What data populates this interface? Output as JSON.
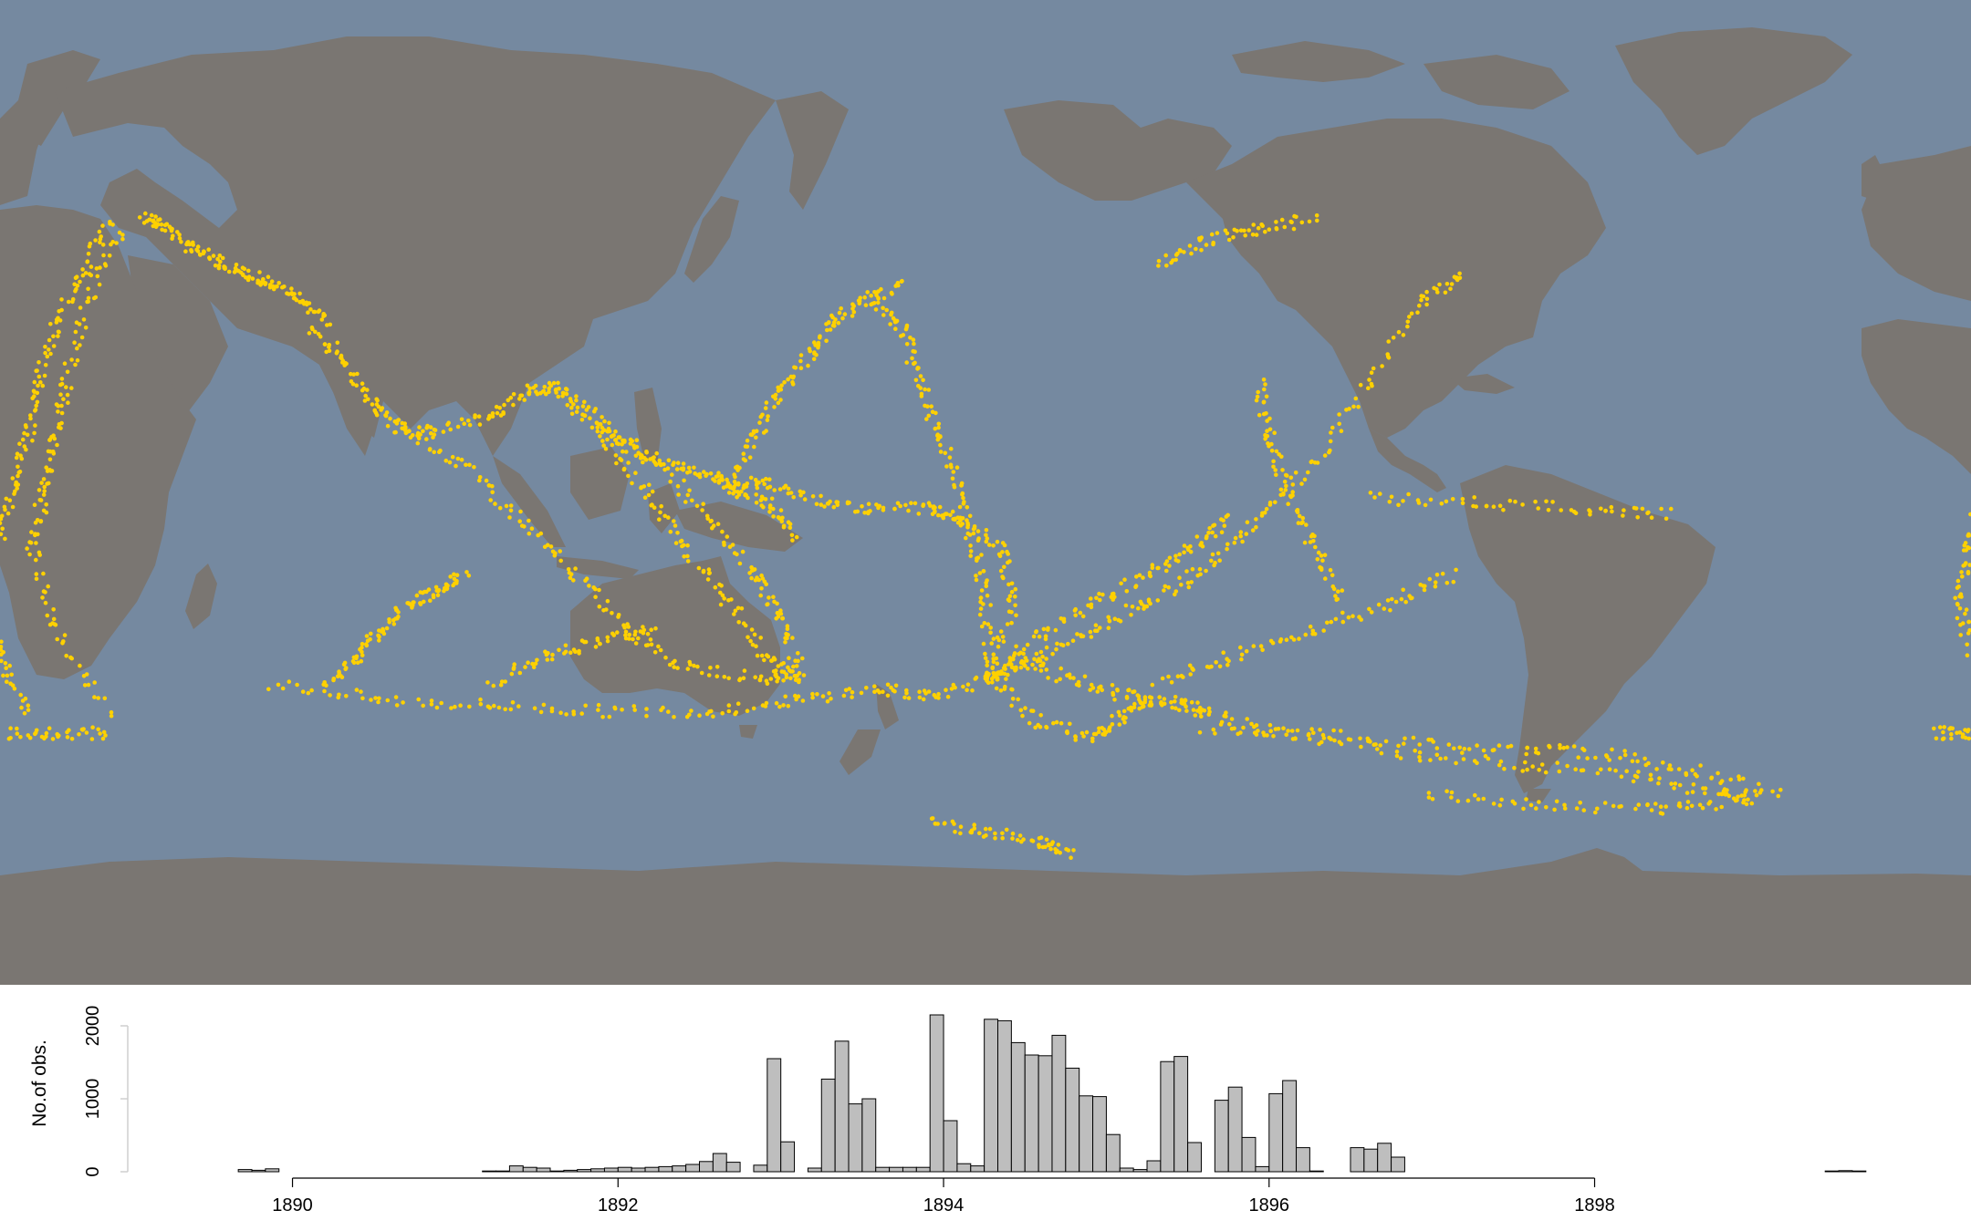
{
  "chart_data": [
    {
      "type": "scatter",
      "title": "",
      "xlabel": "",
      "ylabel": "",
      "colors": {
        "ocean": "#7589a0",
        "land": "#7a7672",
        "points": "#ffd100"
      },
      "xlim": [
        -180,
        180
      ],
      "ylim": [
        -90,
        90
      ],
      "tracks": [
        {
          "name": "",
          "points": [
            [
              27,
              30
            ],
            [
              33,
              24
            ],
            [
              38,
              16
            ],
            [
              43,
              12
            ],
            [
              50,
              11
            ],
            [
              60,
              14
            ],
            [
              67,
              19
            ],
            [
              72,
              19
            ]
          ]
        },
        {
          "name": "",
          "points": [
            [
              72,
              19
            ],
            [
              80,
              13
            ],
            [
              85,
              8
            ],
            [
              93,
              5
            ],
            [
              100,
              3
            ],
            [
              104,
              1
            ],
            [
              110,
              -2
            ],
            [
              115,
              -8
            ]
          ]
        },
        {
          "name": "",
          "points": [
            [
              80,
              13
            ],
            [
              90,
              5
            ],
            [
              100,
              -5
            ],
            [
              108,
              -15
            ],
            [
              112,
              -22
            ],
            [
              116,
              -32
            ]
          ]
        },
        {
          "name": "",
          "points": [
            [
              72,
              19
            ],
            [
              80,
              10
            ],
            [
              88,
              0
            ],
            [
              95,
              -10
            ],
            [
              103,
              -20
            ],
            [
              110,
              -30
            ],
            [
              115,
              -34
            ]
          ]
        },
        {
          "name": "",
          "points": [
            [
              43,
              12
            ],
            [
              55,
              5
            ],
            [
              65,
              -5
            ],
            [
              75,
              -15
            ],
            [
              85,
              -25
            ],
            [
              95,
              -32
            ],
            [
              110,
              -34
            ],
            [
              116,
              -33
            ]
          ]
        },
        {
          "name": "",
          "points": [
            [
              20,
              -35
            ],
            [
              40,
              -38
            ],
            [
              60,
              -39
            ],
            [
              80,
              -40
            ],
            [
              100,
              -40
            ],
            [
              115,
              -38
            ],
            [
              130,
              -36
            ],
            [
              140,
              -37
            ],
            [
              151,
              -34
            ]
          ]
        },
        {
          "name": "",
          "points": [
            [
              -175,
              -38
            ],
            [
              -165,
              -42
            ],
            [
              -150,
              -45
            ],
            [
              -130,
              -48
            ],
            [
              -110,
              -50
            ],
            [
              -90,
              -52
            ],
            [
              -75,
              -55
            ],
            [
              -70,
              -56
            ]
          ]
        },
        {
          "name": "",
          "points": [
            [
              151,
              -34
            ],
            [
              160,
              -30
            ],
            [
              170,
              -25
            ],
            [
              180,
              -20
            ],
            [
              -170,
              -14
            ],
            [
              -160,
              -5
            ],
            [
              -150,
              5
            ],
            [
              -140,
              20
            ],
            [
              -130,
              35
            ],
            [
              -123,
              40
            ]
          ]
        },
        {
          "name": "",
          "points": [
            [
              151,
              -34
            ],
            [
              160,
              -26
            ],
            [
              170,
              -20
            ],
            [
              180,
              -15
            ],
            [
              -172,
              -10
            ],
            [
              -165,
              -5
            ]
          ]
        },
        {
          "name": "",
          "points": [
            [
              151,
              -34
            ],
            [
              160,
              -42
            ],
            [
              170,
              -45
            ],
            [
              175,
              -41
            ],
            [
              180,
              -38
            ]
          ]
        },
        {
          "name": "",
          "points": [
            [
              151,
              -34
            ],
            [
              155,
              -20
            ],
            [
              153,
              -10
            ],
            [
              145,
              -5
            ],
            [
              140,
              -3
            ],
            [
              130,
              -3
            ],
            [
              120,
              -2
            ],
            [
              110,
              2
            ],
            [
              104,
              1
            ]
          ]
        },
        {
          "name": "",
          "points": [
            [
              151,
              -34
            ],
            [
              150,
              -20
            ],
            [
              148,
              -10
            ],
            [
              145,
              0
            ],
            [
              142,
              10
            ],
            [
              138,
              20
            ],
            [
              135,
              30
            ],
            [
              130,
              35
            ]
          ]
        },
        {
          "name": "",
          "points": [
            [
              104,
              1
            ],
            [
              108,
              10
            ],
            [
              112,
              18
            ],
            [
              118,
              25
            ],
            [
              122,
              31
            ],
            [
              128,
              35
            ],
            [
              135,
              38
            ]
          ]
        },
        {
          "name": "",
          "points": [
            [
              151,
              -34
            ],
            [
              156,
              -30
            ],
            [
              165,
              -34
            ],
            [
              175,
              -37
            ],
            [
              -178,
              -38
            ],
            [
              -170,
              -40
            ]
          ]
        },
        {
          "name": "",
          "points": [
            [
              -10,
              50
            ],
            [
              -15,
              40
            ],
            [
              -20,
              30
            ],
            [
              -23,
              20
            ],
            [
              -25,
              10
            ],
            [
              -28,
              0
            ],
            [
              -30,
              -10
            ],
            [
              -32,
              -20
            ],
            [
              -30,
              -30
            ],
            [
              -25,
              -40
            ]
          ]
        },
        {
          "name": "",
          "points": [
            [
              -8,
              48
            ],
            [
              -14,
              35
            ],
            [
              -18,
              20
            ],
            [
              -20,
              10
            ],
            [
              -22,
              0
            ],
            [
              -24,
              -10
            ],
            [
              -20,
              -25
            ],
            [
              -10,
              -40
            ]
          ]
        },
        {
          "name": "",
          "points": [
            [
              -4,
              50
            ],
            [
              0,
              49
            ],
            [
              5,
              45
            ],
            [
              10,
              42
            ],
            [
              15,
              40
            ],
            [
              20,
              38
            ],
            [
              25,
              35
            ],
            [
              30,
              31
            ]
          ]
        },
        {
          "name": "",
          "points": [
            [
              -170,
              -43
            ],
            [
              -150,
              -44
            ],
            [
              -130,
              -46
            ],
            [
              -110,
              -47
            ],
            [
              -95,
              -48
            ],
            [
              -80,
              -51
            ],
            [
              -65,
              -55
            ]
          ]
        },
        {
          "name": "",
          "points": [
            [
              -179,
              -35
            ],
            [
              -165,
              -30
            ],
            [
              -150,
              -25
            ],
            [
              -135,
              -20
            ],
            [
              -125,
              -15
            ]
          ]
        },
        {
          "name": "",
          "points": [
            [
              -178,
              42
            ],
            [
              -170,
              46
            ],
            [
              -160,
              48
            ],
            [
              -150,
              50
            ]
          ]
        },
        {
          "name": "",
          "points": [
            [
              -160,
              20
            ],
            [
              -158,
              10
            ],
            [
              -155,
              0
            ],
            [
              -150,
              -10
            ],
            [
              -145,
              -20
            ]
          ]
        },
        {
          "name": "",
          "points": [
            [
              -140,
              -1
            ],
            [
              -120,
              -2
            ],
            [
              -100,
              -3
            ],
            [
              -85,
              -4
            ]
          ]
        },
        {
          "name": "",
          "points": [
            [
              30,
              -35
            ],
            [
              35,
              -30
            ],
            [
              40,
              -25
            ],
            [
              45,
              -20
            ],
            [
              50,
              -18
            ],
            [
              55,
              -15
            ]
          ]
        },
        {
          "name": "",
          "points": [
            [
              60,
              -35
            ],
            [
              70,
              -30
            ],
            [
              80,
              -27
            ],
            [
              90,
              -25
            ]
          ]
        },
        {
          "name": "",
          "points": [
            [
              -37,
              -44
            ],
            [
              -30,
              -44
            ],
            [
              -20,
              -44
            ],
            [
              -10,
              -44
            ]
          ]
        },
        {
          "name": "",
          "points": [
            [
              -130,
              -55
            ],
            [
              -110,
              -57
            ],
            [
              -90,
              -58
            ],
            [
              -75,
              -57
            ]
          ]
        },
        {
          "name": "",
          "points": [
            [
              140,
              -60
            ],
            [
              150,
              -62
            ],
            [
              160,
              -64
            ],
            [
              165,
              -66
            ]
          ]
        }
      ]
    },
    {
      "type": "bar",
      "title": "",
      "xlabel": "",
      "ylabel": "No.of obs.",
      "xlim": [
        1889.1,
        1899.92
      ],
      "ylim": [
        0,
        2000
      ],
      "yticks": [
        0,
        1000,
        2000
      ],
      "xticks": [
        1890,
        1892,
        1894,
        1896,
        1898
      ],
      "tick_labels": [
        "1890",
        "1892",
        "1894",
        "1896",
        "1898"
      ],
      "ytick_labels": [
        "0",
        "1000",
        "2000"
      ],
      "bin_start": 1889.667,
      "bin_width": 0.08333,
      "values": [
        30,
        20,
        40,
        0,
        0,
        0,
        0,
        0,
        0,
        0,
        0,
        0,
        0,
        0,
        0,
        0,
        0,
        0,
        10,
        10,
        80,
        60,
        50,
        10,
        20,
        30,
        40,
        50,
        60,
        50,
        60,
        70,
        80,
        100,
        140,
        250,
        130,
        0,
        90,
        1550,
        410,
        0,
        50,
        1270,
        1790,
        930,
        1000,
        60,
        60,
        60,
        60,
        2150,
        700,
        110,
        80,
        2090,
        2070,
        1770,
        1600,
        1590,
        1870,
        1420,
        1040,
        1030,
        510,
        50,
        30,
        150,
        1510,
        1580,
        400,
        0,
        980,
        1160,
        470,
        70,
        1070,
        1250,
        330,
        10,
        0,
        0,
        330,
        310,
        390,
        200,
        0,
        0,
        0,
        0,
        0,
        0,
        0,
        0,
        0,
        0,
        0,
        0,
        0,
        0,
        0,
        0,
        0,
        0,
        0,
        0,
        0,
        0,
        0,
        0,
        0,
        0,
        0,
        0,
        0,
        0,
        0,
        10,
        15,
        10,
        0,
        0,
        0,
        0,
        0,
        0,
        0,
        0,
        0,
        0,
        0,
        10,
        90,
        130,
        0,
        70,
        140
      ]
    }
  ]
}
